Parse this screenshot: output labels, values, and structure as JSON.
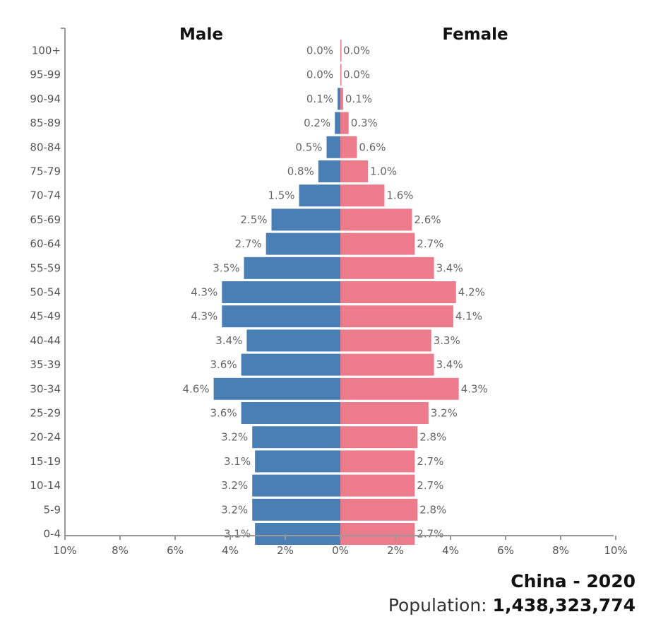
{
  "chart_data": {
    "type": "bar",
    "orientation": "horizontal-diverging",
    "categories": [
      "100+",
      "95-99",
      "90-94",
      "85-89",
      "80-84",
      "75-79",
      "70-74",
      "65-69",
      "60-64",
      "55-59",
      "50-54",
      "45-49",
      "40-44",
      "35-39",
      "30-34",
      "25-29",
      "20-24",
      "15-19",
      "10-14",
      "5-9",
      "0-4"
    ],
    "series": [
      {
        "name": "Male",
        "color": "#4a7fb5",
        "values": [
          0.0,
          0.0,
          0.1,
          0.2,
          0.5,
          0.8,
          1.5,
          2.5,
          2.7,
          3.5,
          4.3,
          4.3,
          3.4,
          3.6,
          4.6,
          3.6,
          3.2,
          3.1,
          3.2,
          3.2,
          3.1
        ],
        "labels": [
          "0.0%",
          "0.0%",
          "0.1%",
          "0.2%",
          "0.5%",
          "0.8%",
          "1.5%",
          "2.5%",
          "2.7%",
          "3.5%",
          "4.3%",
          "4.3%",
          "3.4%",
          "3.6%",
          "4.6%",
          "3.6%",
          "3.2%",
          "3.1%",
          "3.2%",
          "3.2%",
          "3.1%"
        ]
      },
      {
        "name": "Female",
        "color": "#ec7b8c",
        "values": [
          0.0,
          0.0,
          0.1,
          0.3,
          0.6,
          1.0,
          1.6,
          2.6,
          2.7,
          3.4,
          4.2,
          4.1,
          3.3,
          3.4,
          4.3,
          3.2,
          2.8,
          2.7,
          2.7,
          2.8,
          2.7
        ],
        "labels": [
          "0.0%",
          "0.0%",
          "0.1%",
          "0.3%",
          "0.6%",
          "1.0%",
          "1.6%",
          "2.6%",
          "2.7%",
          "3.4%",
          "4.2%",
          "4.1%",
          "3.3%",
          "3.4%",
          "4.3%",
          "3.2%",
          "2.8%",
          "2.7%",
          "2.7%",
          "2.8%",
          "2.7%"
        ]
      }
    ],
    "xlim": [
      -10,
      10
    ],
    "x_ticks": [
      -10,
      -8,
      -6,
      -4,
      -2,
      0,
      2,
      4,
      6,
      8,
      10
    ],
    "x_tick_labels": [
      "10%",
      "8%",
      "6%",
      "4%",
      "2%",
      "0%",
      "2%",
      "4%",
      "6%",
      "8%",
      "10%"
    ],
    "grid": false,
    "legend": "series labels above bars"
  },
  "caption": {
    "title": "China - 2020",
    "population_label": "Population:",
    "population_value": "1,438,323,774"
  }
}
